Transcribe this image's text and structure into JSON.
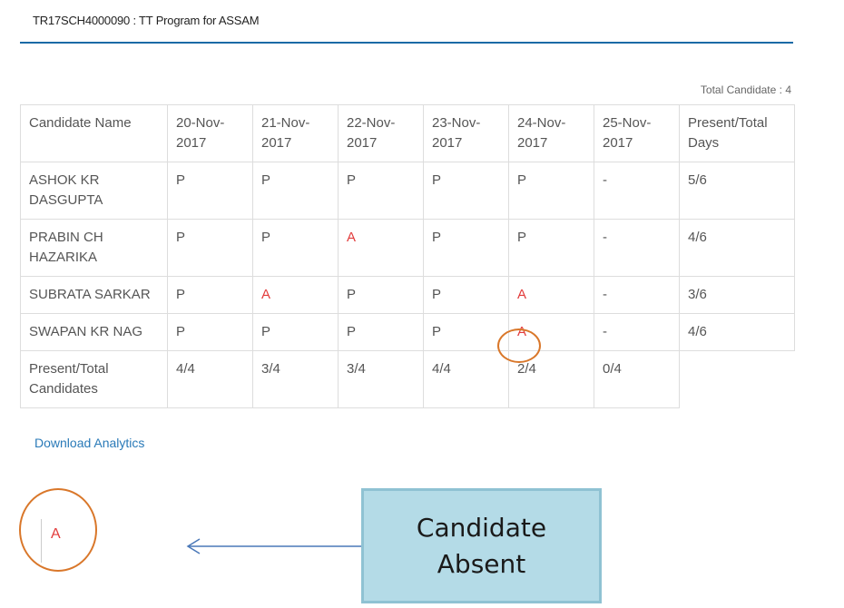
{
  "header": {
    "title": "TR17SCH4000090 : TT Program for ASSAM"
  },
  "summary": {
    "total_candidates_label": "Total Candidate : 4"
  },
  "table": {
    "columns": [
      "Candidate Name",
      "20-Nov-2017",
      "21-Nov-2017",
      "22-Nov-2017",
      "23-Nov-2017",
      "24-Nov-2017",
      "25-Nov-2017",
      "Present/Total Days"
    ],
    "rows": [
      {
        "name": "ASHOK KR DASGUPTA",
        "days": [
          "P",
          "P",
          "P",
          "P",
          "P",
          "-"
        ],
        "total": "5/6"
      },
      {
        "name": "PRABIN CH HAZARIKA",
        "days": [
          "P",
          "P",
          "A",
          "P",
          "P",
          "-"
        ],
        "total": "4/6"
      },
      {
        "name": "SUBRATA SARKAR",
        "days": [
          "P",
          "A",
          "P",
          "P",
          "A",
          "-"
        ],
        "total": "3/6"
      },
      {
        "name": "SWAPAN KR NAG",
        "days": [
          "P",
          "P",
          "P",
          "P",
          "A",
          "-"
        ],
        "total": "4/6"
      }
    ],
    "footer": {
      "label": "Present/Total Candidates",
      "values": [
        "4/4",
        "3/4",
        "3/4",
        "4/4",
        "2/4",
        "0/4"
      ]
    }
  },
  "actions": {
    "download_label": "Download Analytics"
  },
  "legend": {
    "absent_symbol": "A",
    "callout_text": "Candidate Absent"
  },
  "colors": {
    "accent": "#1a6aa6",
    "absent": "#e23b3b",
    "highlight": "#d9772a",
    "callout_bg": "#b4dbe7",
    "link": "#2a7ab8"
  }
}
